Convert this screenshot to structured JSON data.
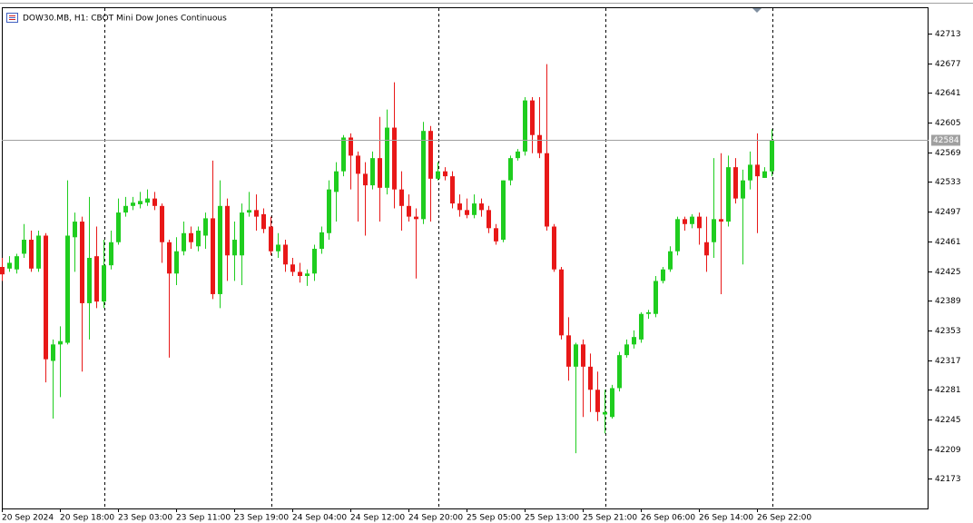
{
  "chart_data": {
    "type": "candlestick",
    "title": "DOW30.MB, H1:  CBOT Mini Dow Jones Continuous",
    "current_price": {
      "value": 42584,
      "label": "42584"
    },
    "up_color": "#1fcd1f",
    "down_color": "#e81818",
    "ylim": [
      42137,
      42745
    ],
    "yticks": [
      42173,
      42209,
      42245,
      42281,
      42317,
      42353,
      42389,
      42425,
      42461,
      42497,
      42533,
      42569,
      42605,
      42641,
      42677,
      42713
    ],
    "categories": [
      "20 Sep 2024",
      null,
      null,
      null,
      null,
      null,
      null,
      null,
      "20 Sep 18:00",
      null,
      null,
      null,
      null,
      null,
      null,
      null,
      "23 Sep 03:00",
      null,
      null,
      null,
      null,
      null,
      null,
      null,
      "23 Sep 11:00",
      null,
      null,
      null,
      null,
      null,
      null,
      null,
      "23 Sep 19:00",
      null,
      null,
      null,
      null,
      null,
      null,
      null,
      "24 Sep 04:00",
      null,
      null,
      null,
      null,
      null,
      null,
      null,
      "24 Sep 12:00",
      null,
      null,
      null,
      null,
      null,
      null,
      null,
      "24 Sep 20:00",
      null,
      null,
      null,
      null,
      null,
      null,
      null,
      "25 Sep 05:00",
      null,
      null,
      null,
      null,
      null,
      null,
      null,
      "25 Sep 13:00",
      null,
      null,
      null,
      null,
      null,
      null,
      null,
      "25 Sep 21:00",
      null,
      null,
      null,
      null,
      null,
      null,
      null,
      "26 Sep 06:00",
      null,
      null,
      null,
      null,
      null,
      null,
      null,
      "26 Sep 14:00",
      null,
      null,
      null,
      null,
      null,
      null,
      null,
      "26 Sep 22:00",
      null,
      null
    ],
    "values": [
      [
        42430,
        42441,
        42413,
        42421
      ],
      [
        42428,
        42443,
        42424,
        42435
      ],
      [
        42427,
        42446,
        42422,
        42443
      ],
      [
        42446,
        42482,
        42441,
        42463
      ],
      [
        42463,
        42474,
        42424,
        42428
      ],
      [
        42428,
        42474,
        42424,
        42468
      ],
      [
        42468,
        42471,
        42290,
        42318
      ],
      [
        42316,
        42342,
        42246,
        42336
      ],
      [
        42336,
        42358,
        42272,
        42340
      ],
      [
        42338,
        42535,
        42336,
        42468
      ],
      [
        42466,
        42496,
        42424,
        42485
      ],
      [
        42485,
        42491,
        42303,
        42386
      ],
      [
        42386,
        42515,
        42342,
        42441
      ],
      [
        42443,
        42479,
        42380,
        42388
      ],
      [
        42388,
        42463,
        42380,
        42432
      ],
      [
        42432,
        42474,
        42427,
        42460
      ],
      [
        42460,
        42513,
        42457,
        42496
      ],
      [
        42496,
        42515,
        42491,
        42504
      ],
      [
        42504,
        42515,
        42499,
        42508
      ],
      [
        42506,
        42521,
        42501,
        42510
      ],
      [
        42508,
        42524,
        42504,
        42513
      ],
      [
        42513,
        42521,
        42499,
        42504
      ],
      [
        42504,
        42507,
        42435,
        42460
      ],
      [
        42460,
        42463,
        42320,
        42422
      ],
      [
        42422,
        42466,
        42408,
        42449
      ],
      [
        42449,
        42485,
        42444,
        42471
      ],
      [
        42471,
        42479,
        42452,
        42460
      ],
      [
        42455,
        42479,
        42449,
        42474
      ],
      [
        42468,
        42496,
        42452,
        42489
      ],
      [
        42489,
        42559,
        42391,
        42397
      ],
      [
        42397,
        42535,
        42380,
        42504
      ],
      [
        42504,
        42513,
        42413,
        42444
      ],
      [
        42444,
        42485,
        42413,
        42463
      ],
      [
        42444,
        42507,
        42408,
        42496
      ],
      [
        42496,
        42521,
        42491,
        42499
      ],
      [
        42499,
        42518,
        42474,
        42491
      ],
      [
        42494,
        42501,
        42471,
        42476
      ],
      [
        42479,
        42491,
        42444,
        42449
      ],
      [
        42449,
        42471,
        42441,
        42457
      ],
      [
        42457,
        42463,
        42424,
        42433
      ],
      [
        42433,
        42441,
        42419,
        42424
      ],
      [
        42424,
        42435,
        42411,
        42419
      ],
      [
        42419,
        42427,
        42407,
        42422
      ],
      [
        42422,
        42457,
        42413,
        42452
      ],
      [
        42452,
        42479,
        42446,
        42472
      ],
      [
        42471,
        42535,
        42463,
        42524
      ],
      [
        42521,
        42557,
        42485,
        42546
      ],
      [
        42546,
        42590,
        42540,
        42587
      ],
      [
        42587,
        42592,
        42524,
        42565
      ],
      [
        42565,
        42570,
        42485,
        42543
      ],
      [
        42543,
        42557,
        42468,
        42529
      ],
      [
        42529,
        42570,
        42524,
        42562
      ],
      [
        42562,
        42612,
        42485,
        42526
      ],
      [
        42526,
        42621,
        42518,
        42599
      ],
      [
        42599,
        42654,
        42501,
        42524
      ],
      [
        42524,
        42546,
        42474,
        42504
      ],
      [
        42504,
        42518,
        42485,
        42491
      ],
      [
        42491,
        42501,
        42416,
        42488
      ],
      [
        42488,
        42606,
        42482,
        42595
      ],
      [
        42595,
        42601,
        42485,
        42537
      ],
      [
        42537,
        42557,
        42535,
        42546
      ],
      [
        42546,
        42551,
        42535,
        42540
      ],
      [
        42540,
        42546,
        42501,
        42507
      ],
      [
        42507,
        42518,
        42491,
        42499
      ],
      [
        42499,
        42513,
        42489,
        42493
      ],
      [
        42493,
        42518,
        42489,
        42507
      ],
      [
        42507,
        42513,
        42491,
        42499
      ],
      [
        42499,
        42504,
        42471,
        42477
      ],
      [
        42477,
        42482,
        42457,
        42461
      ],
      [
        42463,
        42535,
        42460,
        42535
      ],
      [
        42535,
        42565,
        42529,
        42562
      ],
      [
        42562,
        42573,
        42559,
        42570
      ],
      [
        42570,
        42636,
        42565,
        42632
      ],
      [
        42632,
        42636,
        42568,
        42590
      ],
      [
        42590,
        42636,
        42562,
        42568
      ],
      [
        42568,
        42676,
        42474,
        42479
      ],
      [
        42479,
        42482,
        42424,
        42427
      ],
      [
        42427,
        42430,
        42342,
        42347
      ],
      [
        42347,
        42369,
        42292,
        42309
      ],
      [
        42309,
        42338,
        42204,
        42336
      ],
      [
        42336,
        42342,
        42248,
        42309
      ],
      [
        42309,
        42325,
        42254,
        42281
      ],
      [
        42281,
        42303,
        42243,
        42254
      ],
      [
        42251,
        42281,
        42228,
        42254
      ],
      [
        42248,
        42287,
        42246,
        42283
      ],
      [
        42283,
        42327,
        42279,
        42323
      ],
      [
        42323,
        42342,
        42320,
        42336
      ],
      [
        42336,
        42353,
        42331,
        42345
      ],
      [
        42342,
        42375,
        42338,
        42373
      ],
      [
        42373,
        42378,
        42367,
        42375
      ],
      [
        42373,
        42419,
        42369,
        42413
      ],
      [
        42413,
        42430,
        42410,
        42427
      ],
      [
        42427,
        42455,
        42424,
        42449
      ],
      [
        42449,
        42491,
        42444,
        42488
      ],
      [
        42488,
        42491,
        42474,
        42482
      ],
      [
        42482,
        42494,
        42477,
        42491
      ],
      [
        42491,
        42496,
        42457,
        42477
      ],
      [
        42460,
        42491,
        42424,
        42444
      ],
      [
        42460,
        42562,
        42441,
        42488
      ],
      [
        42488,
        42568,
        42397,
        42485
      ],
      [
        42485,
        42565,
        42479,
        42551
      ],
      [
        42551,
        42562,
        42507,
        42513
      ],
      [
        42513,
        42548,
        42433,
        42535
      ],
      [
        42535,
        42570,
        42524,
        42554
      ],
      [
        42554,
        42592,
        42471,
        42540
      ],
      [
        42538,
        42551,
        42538,
        42546
      ],
      [
        42546,
        42597,
        42540,
        42584
      ]
    ]
  }
}
